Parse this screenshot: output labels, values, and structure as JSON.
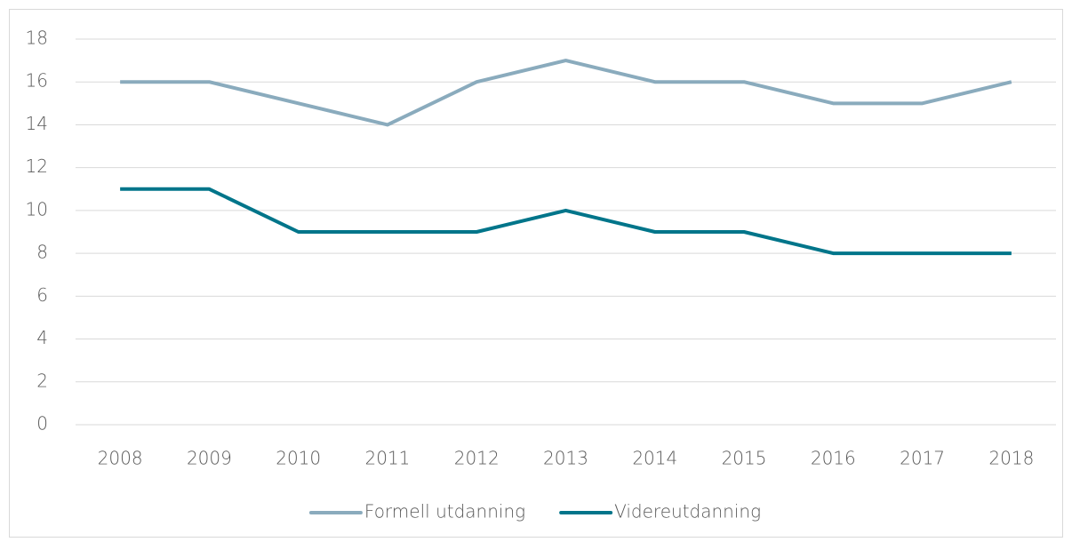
{
  "chart_data": {
    "type": "line",
    "categories": [
      "2008",
      "2009",
      "2010",
      "2011",
      "2012",
      "2013",
      "2014",
      "2015",
      "2016",
      "2017",
      "2018"
    ],
    "series": [
      {
        "name": "Formell utdanning",
        "color": "#8aabbd",
        "values": [
          16,
          16,
          15,
          14,
          16,
          17,
          16,
          16,
          15,
          15,
          16
        ]
      },
      {
        "name": "Videreutdanning",
        "color": "#00758a",
        "values": [
          11,
          11,
          9,
          9,
          9,
          10,
          9,
          9,
          8,
          8,
          8
        ]
      }
    ],
    "ylim": [
      0,
      18
    ],
    "yticks": [
      0,
      2,
      4,
      6,
      8,
      10,
      12,
      14,
      16,
      18
    ],
    "grid": true,
    "legend": "bottom"
  }
}
